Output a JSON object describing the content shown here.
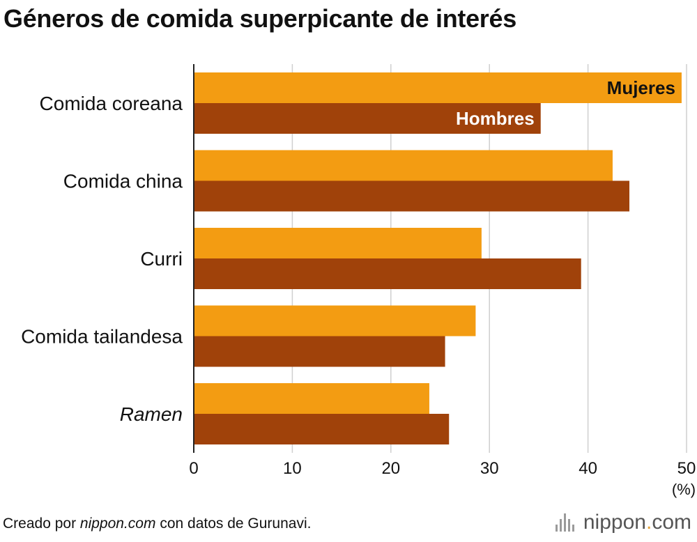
{
  "title": "Géneros de comida superpicante de interés",
  "chart_data": {
    "type": "bar",
    "orientation": "horizontal",
    "title": "Géneros de comida superpicante de interés",
    "categories": [
      "Comida coreana",
      "Comida china",
      "Curri",
      "Comida tailandesa",
      "Ramen"
    ],
    "italic_categories": [
      "Ramen"
    ],
    "series": [
      {
        "name": "Mujeres",
        "values": [
          49.5,
          42.5,
          29.2,
          28.6,
          23.9
        ],
        "color": "#f39c12"
      },
      {
        "name": "Hombres",
        "values": [
          35.2,
          44.2,
          39.3,
          25.5,
          25.9
        ],
        "color": "#a0420a"
      }
    ],
    "x_ticks": [
      0,
      10,
      20,
      30,
      40,
      50
    ],
    "xlim": [
      0,
      50
    ],
    "x_unit": "(%)",
    "grid": true,
    "legend": "inline labels on first category bars"
  },
  "footer": {
    "prefix": "Creado por ",
    "source": "nippon.com",
    "suffix": " con datos de Gurunavi."
  },
  "logo": {
    "brand": "nippon",
    "dot": ".",
    "tld": "com"
  }
}
